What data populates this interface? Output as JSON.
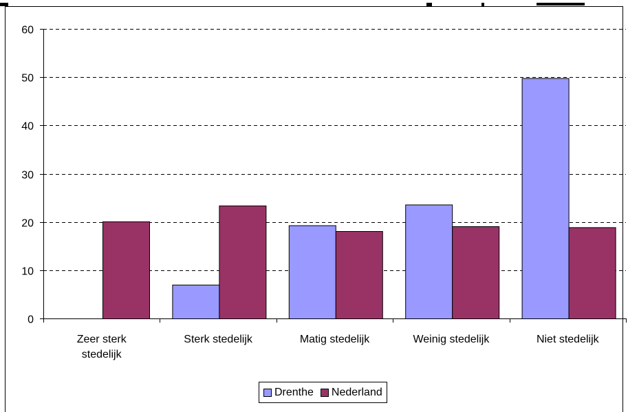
{
  "chart_data": {
    "type": "bar",
    "categories": [
      "Zeer sterk stedelijk",
      "Sterk stedelijk",
      "Matig stedelijk",
      "Weinig stedelijk",
      "Niet stedelijk"
    ],
    "category_lines": [
      [
        "Zeer sterk",
        "stedelijk"
      ],
      [
        "Sterk stedelijk"
      ],
      [
        "Matig stedelijk"
      ],
      [
        "Weinig stedelijk"
      ],
      [
        "Niet stedelijk"
      ]
    ],
    "series": [
      {
        "name": "Drenthe",
        "values": [
          0,
          7,
          19.3,
          23.6,
          49.8
        ],
        "color": "#9999ff"
      },
      {
        "name": "Nederland",
        "values": [
          20.1,
          23.4,
          18.1,
          19.1,
          18.9
        ],
        "color": "#993366"
      }
    ],
    "yticks": [
      0,
      10,
      20,
      30,
      40,
      50,
      60
    ],
    "ylim": [
      0,
      60
    ],
    "title": "",
    "xlabel": "",
    "ylabel": "",
    "grid": "dashed-horizontal",
    "legend_position": "bottom-center"
  }
}
